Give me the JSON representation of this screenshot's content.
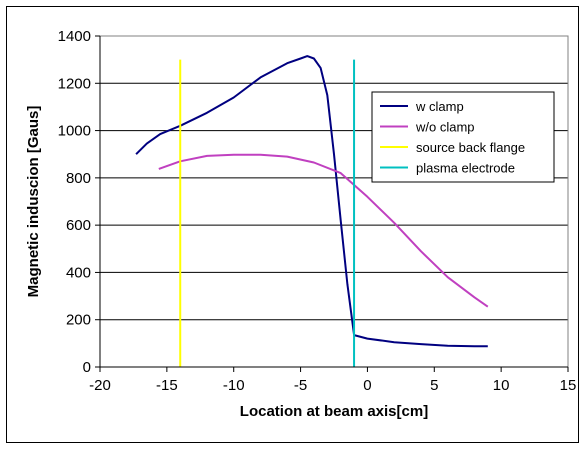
{
  "chart_data": {
    "type": "line",
    "title": "",
    "xlabel": "Location at beam axis[cm]",
    "ylabel": "Magnetic induscion [Gaus]",
    "xlim": [
      -20,
      15
    ],
    "ylim": [
      0,
      1400
    ],
    "x_ticks": [
      "-20",
      "-15",
      "-10",
      "-5",
      "0",
      "5",
      "10",
      "15"
    ],
    "y_ticks": [
      "0",
      "200",
      "400",
      "600",
      "800",
      "1000",
      "1200",
      "1400"
    ],
    "grid": "horizontal",
    "legend_position": "top-right",
    "series": [
      {
        "name": "w clamp",
        "color": "#000080",
        "kind": "line",
        "points": [
          [
            -17.3,
            900
          ],
          [
            -16.5,
            945
          ],
          [
            -15.5,
            985
          ],
          [
            -14,
            1020
          ],
          [
            -12,
            1075
          ],
          [
            -10,
            1140
          ],
          [
            -8,
            1225
          ],
          [
            -6,
            1285
          ],
          [
            -5,
            1305
          ],
          [
            -4.5,
            1315
          ],
          [
            -4,
            1305
          ],
          [
            -3.5,
            1265
          ],
          [
            -3,
            1150
          ],
          [
            -2.5,
            900
          ],
          [
            -2,
            620
          ],
          [
            -1.5,
            350
          ],
          [
            -1,
            135
          ],
          [
            0,
            120
          ],
          [
            2,
            105
          ],
          [
            4,
            97
          ],
          [
            6,
            90
          ],
          [
            8,
            88
          ],
          [
            9,
            88
          ]
        ]
      },
      {
        "name": "w/o clamp",
        "color": "#c040c0",
        "kind": "line",
        "points": [
          [
            -15.6,
            838
          ],
          [
            -14,
            870
          ],
          [
            -12,
            893
          ],
          [
            -10,
            898
          ],
          [
            -8,
            898
          ],
          [
            -6,
            890
          ],
          [
            -4,
            865
          ],
          [
            -2,
            820
          ],
          [
            0,
            720
          ],
          [
            2,
            610
          ],
          [
            4,
            490
          ],
          [
            6,
            380
          ],
          [
            8,
            295
          ],
          [
            9,
            255
          ]
        ]
      },
      {
        "name": "source back flange",
        "color": "#ffff00",
        "kind": "vline",
        "x": -14,
        "y_range": [
          0,
          1300
        ]
      },
      {
        "name": "plasma electrode",
        "color": "#00c0c0",
        "kind": "vline",
        "x": -1,
        "y_range": [
          0,
          1300
        ]
      }
    ]
  }
}
